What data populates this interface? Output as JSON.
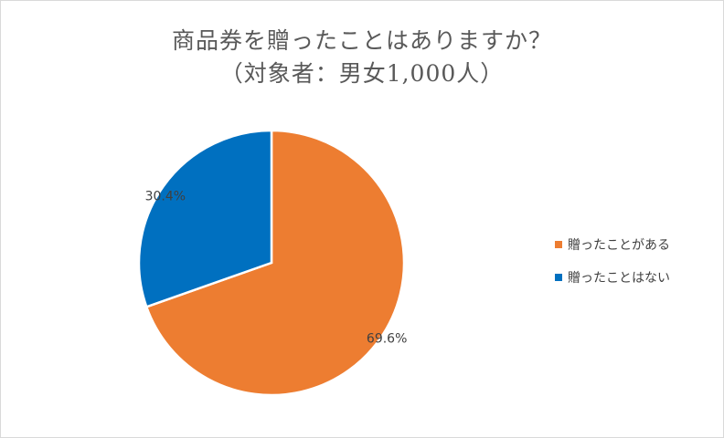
{
  "chart_data": {
    "type": "pie",
    "title_line1": "商品券を贈ったことはありますか？",
    "title_line2": "（対象者：男女1,000人）",
    "slices": [
      {
        "label": "贈ったことがある",
        "value": 69.6,
        "value_label": "69.6%",
        "color": "#ed7d31"
      },
      {
        "label": "贈ったことはない",
        "value": 30.4,
        "value_label": "30.4%",
        "color": "#0070c0"
      }
    ],
    "legend_position": "right"
  }
}
